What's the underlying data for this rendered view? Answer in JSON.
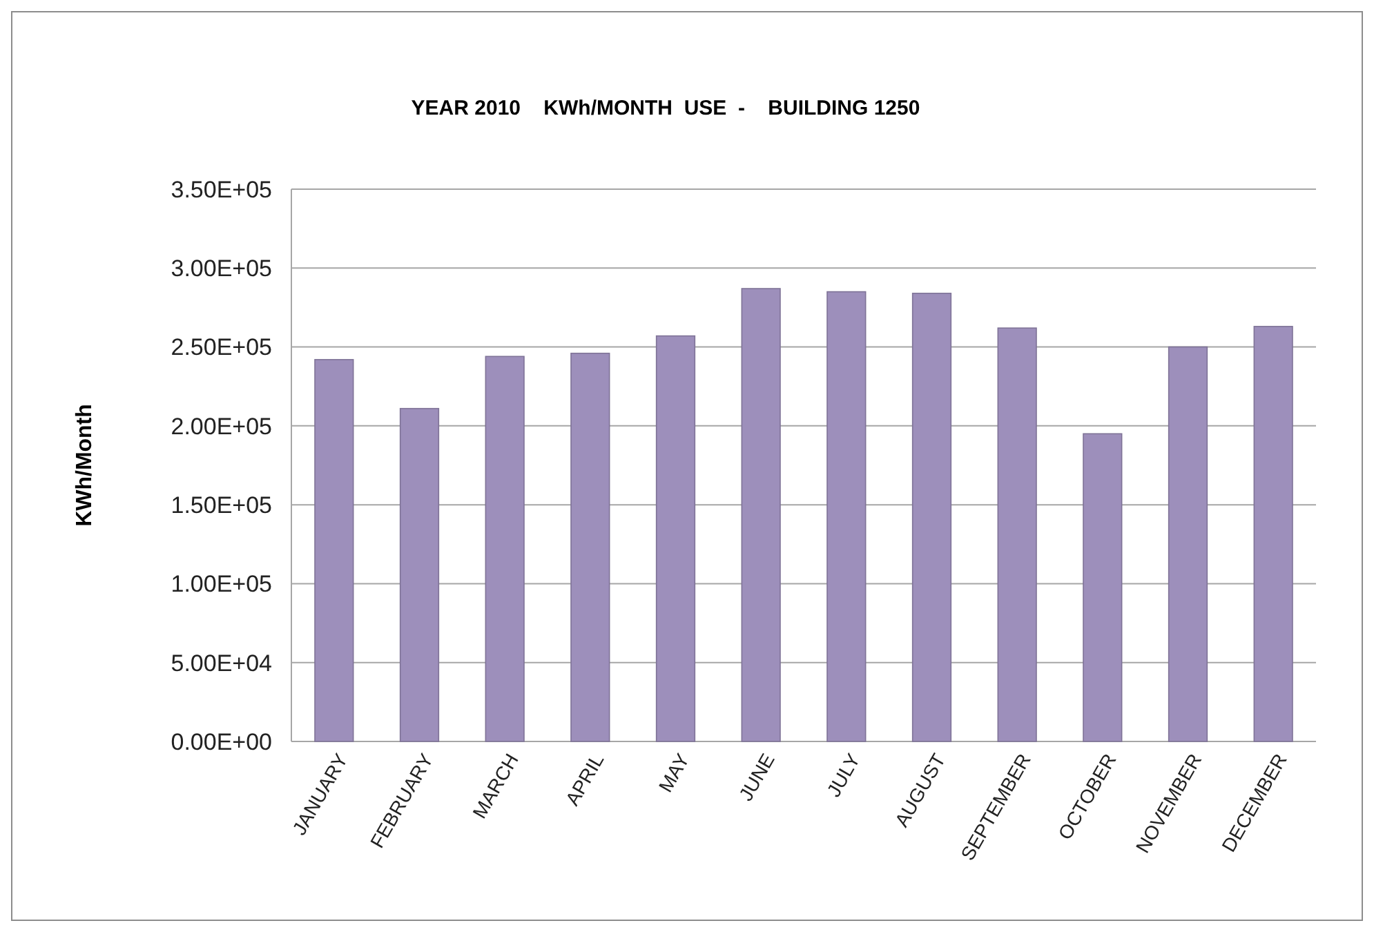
{
  "chart_data": {
    "type": "bar",
    "title": "YEAR 2010    KWh/MONTH  USE  -    BUILDING 1250",
    "ylabel": "KWh/Month",
    "categories": [
      "JANUARY",
      "FEBRUARY",
      "MARCH",
      "APRIL",
      "MAY",
      "JUNE",
      "JULY",
      "AUGUST",
      "SEPTEMBER",
      "OCTOBER",
      "NOVEMBER",
      "DECEMBER"
    ],
    "values": [
      242000,
      211000,
      244000,
      246000,
      257000,
      287000,
      285000,
      284000,
      262000,
      195000,
      250000,
      263000
    ],
    "color": "#9d8fbb",
    "ylim": [
      0,
      350000
    ],
    "yticks": [
      {
        "value": 0,
        "label": "0.00E+00"
      },
      {
        "value": 50000,
        "label": "5.00E+04"
      },
      {
        "value": 100000,
        "label": "1.00E+05"
      },
      {
        "value": 150000,
        "label": "1.50E+05"
      },
      {
        "value": 200000,
        "label": "2.00E+05"
      },
      {
        "value": 250000,
        "label": "2.50E+05"
      },
      {
        "value": 300000,
        "label": "3.00E+05"
      },
      {
        "value": 350000,
        "label": "3.50E+05"
      }
    ],
    "grid": true
  }
}
